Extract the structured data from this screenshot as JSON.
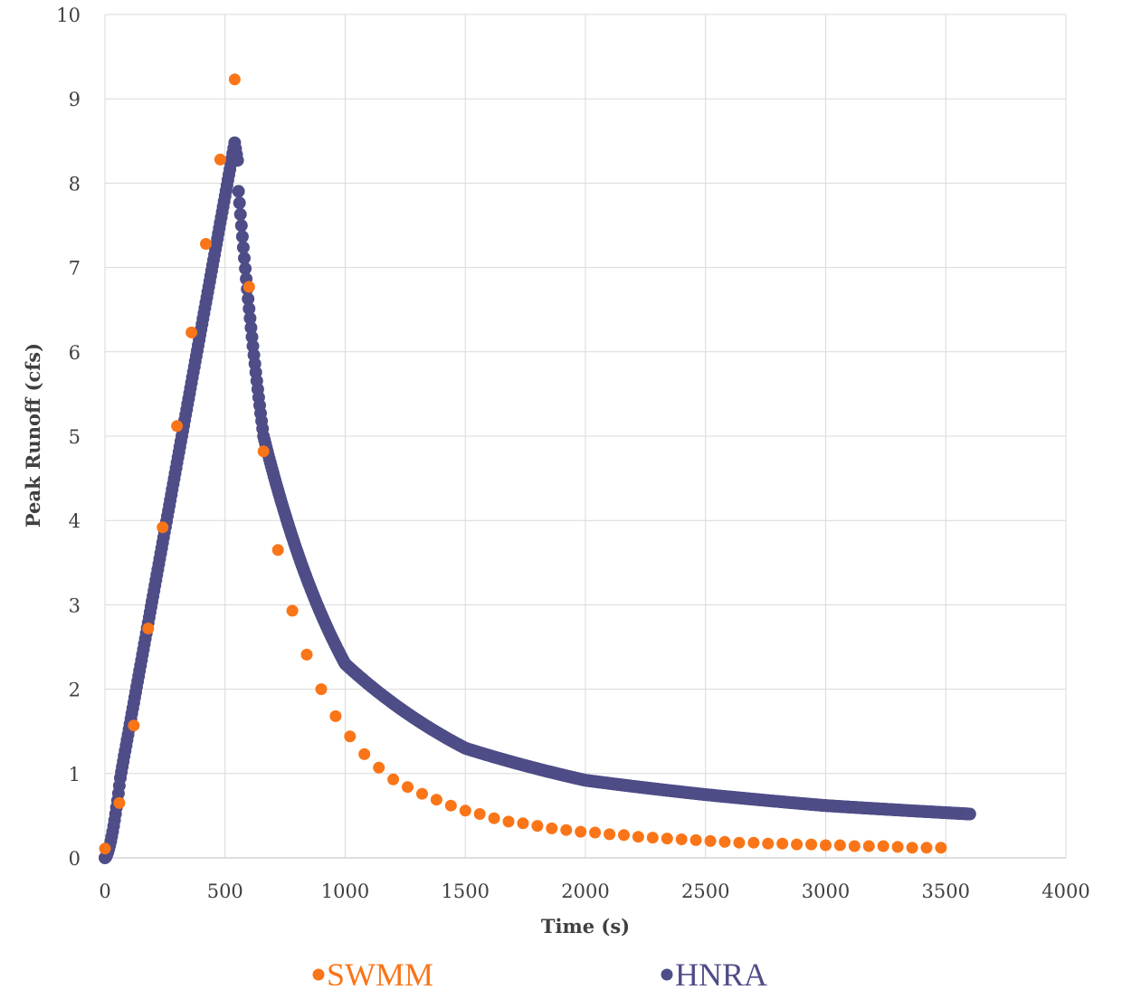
{
  "chart_data": {
    "type": "scatter",
    "xlabel": "Time (s)",
    "ylabel": "Peak Runoff (cfs)",
    "xlim": [
      0,
      4000
    ],
    "ylim": [
      0,
      10
    ],
    "x_ticks": [
      0,
      500,
      1000,
      1500,
      2000,
      2500,
      3000,
      3500,
      4000
    ],
    "y_ticks": [
      0,
      1,
      2,
      3,
      4,
      5,
      6,
      7,
      8,
      9,
      10
    ],
    "grid": true,
    "legend_position": "bottom",
    "series": [
      {
        "name": "SWMM",
        "color": "#F97518",
        "x": [
          0,
          60,
          120,
          180,
          240,
          300,
          360,
          420,
          480,
          540,
          600,
          660,
          720,
          780,
          840,
          900,
          960,
          1020,
          1080,
          1140,
          1200,
          1260,
          1320,
          1380,
          1440,
          1500,
          1560,
          1620,
          1680,
          1740,
          1800,
          1860,
          1920,
          1980,
          2040,
          2100,
          2160,
          2220,
          2280,
          2340,
          2400,
          2460,
          2520,
          2580,
          2640,
          2700,
          2760,
          2820,
          2880,
          2940,
          3000,
          3060,
          3120,
          3180,
          3240,
          3300,
          3360,
          3420,
          3480
        ],
        "y": [
          0.11,
          0.65,
          1.57,
          2.72,
          3.92,
          5.12,
          6.23,
          7.28,
          8.28,
          9.23,
          6.77,
          4.82,
          3.65,
          2.93,
          2.41,
          2.0,
          1.68,
          1.44,
          1.23,
          1.07,
          0.93,
          0.84,
          0.76,
          0.69,
          0.62,
          0.56,
          0.52,
          0.47,
          0.43,
          0.41,
          0.38,
          0.35,
          0.33,
          0.31,
          0.3,
          0.28,
          0.27,
          0.25,
          0.24,
          0.23,
          0.22,
          0.21,
          0.2,
          0.19,
          0.18,
          0.18,
          0.17,
          0.17,
          0.16,
          0.16,
          0.15,
          0.15,
          0.14,
          0.14,
          0.14,
          0.13,
          0.12,
          0.12,
          0.12
        ]
      },
      {
        "name": "HNRA",
        "color": "#4E4D87",
        "model": {
          "rise_end_s": 540,
          "peak_cfs": 8.48,
          "recession_start_s": 556,
          "recession_start_cfs": 8.2,
          "end_s": 3600,
          "end_cfs": 0.52,
          "step_s": 4
        },
        "anchors": [
          {
            "x": 0,
            "y": 0
          },
          {
            "x": 120,
            "y": 1.57
          },
          {
            "x": 240,
            "y": 3.92
          },
          {
            "x": 300,
            "y": 5.12
          },
          {
            "x": 540,
            "y": 8.48
          },
          {
            "x": 660,
            "y": 5.0
          },
          {
            "x": 1000,
            "y": 2.3
          },
          {
            "x": 1500,
            "y": 1.3
          },
          {
            "x": 2000,
            "y": 0.92
          },
          {
            "x": 2500,
            "y": 0.75
          },
          {
            "x": 3000,
            "y": 0.62
          },
          {
            "x": 3600,
            "y": 0.52
          }
        ]
      }
    ]
  }
}
